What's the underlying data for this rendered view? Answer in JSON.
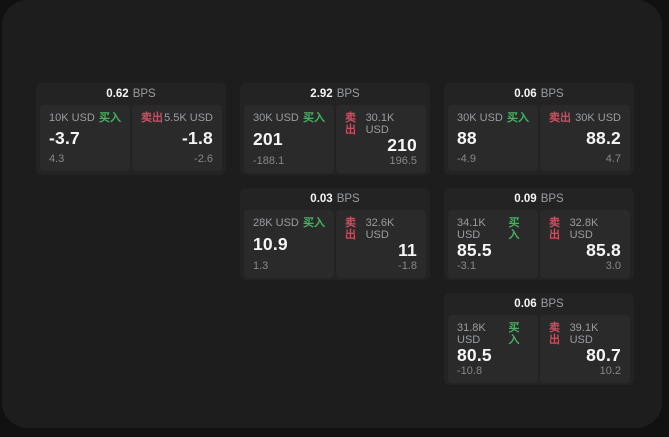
{
  "labels": {
    "bps_unit": "BPS",
    "buy": "买入",
    "sell": "卖出"
  },
  "colors": {
    "panel": "#1d1d1e",
    "card": "#232324",
    "tile": "#2a2a2b",
    "white": "#f4f5f6",
    "grey": "#9a9da0",
    "dimgrey": "#85888b",
    "buy": "#46b261",
    "sell": "#c94f5e"
  },
  "cards": [
    {
      "col": 1,
      "row": 1,
      "bps": "0.62",
      "buy": {
        "amount": "10K USD",
        "value": "-3.7",
        "delta": "4.3"
      },
      "sell": {
        "amount": "5.5K USD",
        "value": "-1.8",
        "delta": "-2.6"
      }
    },
    {
      "col": 2,
      "row": 1,
      "bps": "2.92",
      "buy": {
        "amount": "30K USD",
        "value": "201",
        "delta": "-188.1"
      },
      "sell": {
        "amount": "30.1K USD",
        "value": "210",
        "delta": "196.5"
      }
    },
    {
      "col": 3,
      "row": 1,
      "bps": "0.06",
      "buy": {
        "amount": "30K USD",
        "value": "88",
        "delta": "-4.9"
      },
      "sell": {
        "amount": "30K USD",
        "value": "88.2",
        "delta": "4.7"
      }
    },
    {
      "col": 2,
      "row": 2,
      "bps": "0.03",
      "buy": {
        "amount": "28K USD",
        "value": "10.9",
        "delta": "1.3"
      },
      "sell": {
        "amount": "32.6K USD",
        "value": "11",
        "delta": "-1.8"
      }
    },
    {
      "col": 3,
      "row": 2,
      "bps": "0.09",
      "buy": {
        "amount": "34.1K USD",
        "value": "85.5",
        "delta": "-3.1"
      },
      "sell": {
        "amount": "32.8K USD",
        "value": "85.8",
        "delta": "3.0"
      }
    },
    {
      "col": 3,
      "row": 3,
      "bps": "0.06",
      "buy": {
        "amount": "31.8K USD",
        "value": "80.5",
        "delta": "-10.8"
      },
      "sell": {
        "amount": "39.1K USD",
        "value": "80.7",
        "delta": "10.2"
      }
    }
  ]
}
